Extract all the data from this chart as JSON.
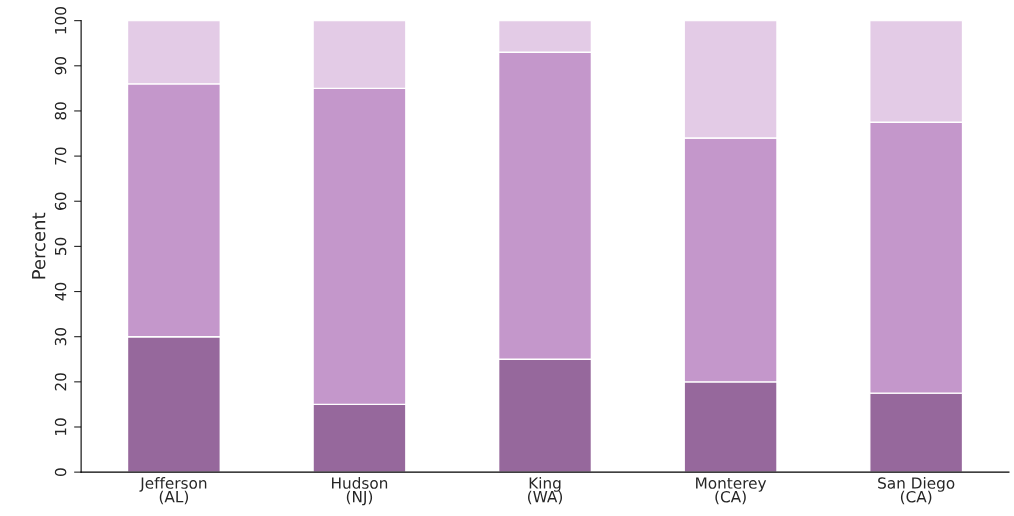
{
  "chart_data": {
    "type": "bar",
    "stacked": true,
    "ylabel": "Percent",
    "categories": [
      "Jefferson\n(AL)",
      "Hudson\n(NJ)",
      "King\n(WA)",
      "Monterey\n(CA)",
      "San Diego\n(CA)"
    ],
    "series": [
      {
        "color": "#96689c",
        "values": [
          30,
          15,
          25,
          20,
          17.5
        ]
      },
      {
        "color": "#c497cb",
        "values": [
          56,
          70,
          68,
          54,
          60
        ]
      },
      {
        "color": "#e3cbe6",
        "values": [
          14,
          15,
          7,
          26,
          22.5
        ]
      }
    ],
    "ylim": [
      0,
      100
    ],
    "yticks": [
      0,
      10,
      20,
      30,
      40,
      50,
      60,
      70,
      80,
      90,
      100
    ],
    "grid": false,
    "legend": false
  }
}
